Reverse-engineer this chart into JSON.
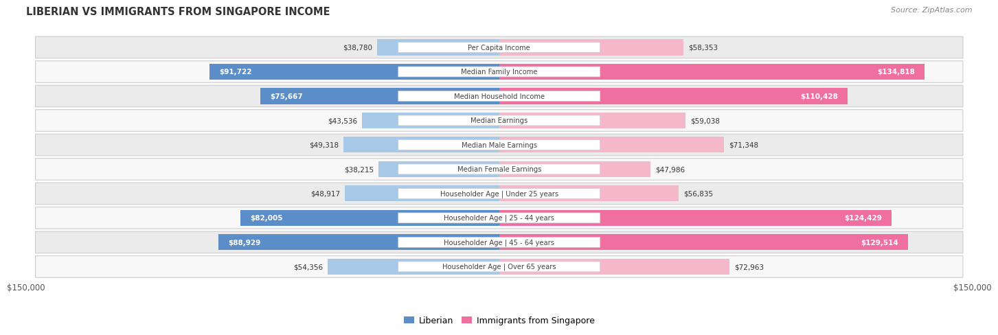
{
  "title": "LIBERIAN VS IMMIGRANTS FROM SINGAPORE INCOME",
  "source": "Source: ZipAtlas.com",
  "categories": [
    "Per Capita Income",
    "Median Family Income",
    "Median Household Income",
    "Median Earnings",
    "Median Male Earnings",
    "Median Female Earnings",
    "Householder Age | Under 25 years",
    "Householder Age | 25 - 44 years",
    "Householder Age | 45 - 64 years",
    "Householder Age | Over 65 years"
  ],
  "liberian": [
    38780,
    91722,
    75667,
    43536,
    49318,
    38215,
    48917,
    82005,
    88929,
    54356
  ],
  "singapore": [
    58353,
    134818,
    110428,
    59038,
    71348,
    47986,
    56835,
    124429,
    129514,
    72963
  ],
  "max_val": 150000,
  "color_liberian_light": "#A8C8E8",
  "color_liberian_dark": "#5B8DC8",
  "color_singapore_light": "#F5B8CB",
  "color_singapore_dark": "#EE6FA0",
  "row_bg_even": "#ebebeb",
  "row_bg_odd": "#f8f8f8",
  "legend_liberian": "Liberian",
  "legend_singapore": "Immigrants from Singapore",
  "lib_dark_threshold": 70000,
  "sing_dark_threshold": 100000
}
